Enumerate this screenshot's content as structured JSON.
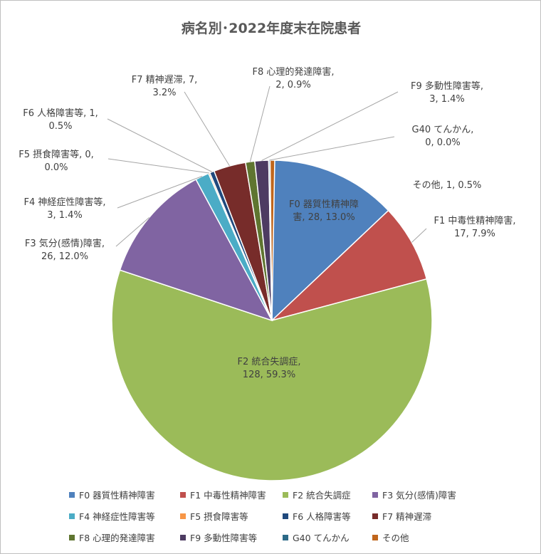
{
  "chart_data": {
    "type": "pie",
    "title": "病名別･2022年度末在院患者",
    "slices": [
      {
        "name": "F0 器質性精神障害",
        "value": 28,
        "percent": "13.0%",
        "color": "#4F81BD",
        "label_line1": "F0 器質性精神障",
        "label_line2": "害, 28, 13.0%"
      },
      {
        "name": "F1 中毒性精神障害",
        "value": 17,
        "percent": "7.9%",
        "color": "#C0504D",
        "label_line1": "F1 中毒性精神障害,",
        "label_line2": "17, 7.9%"
      },
      {
        "name": "F2 統合失調症",
        "value": 128,
        "percent": "59.3%",
        "color": "#9BBB59",
        "label_line1": "F2 統合失調症,",
        "label_line2": "128, 59.3%"
      },
      {
        "name": "F3 気分(感情)障害",
        "value": 26,
        "percent": "12.0%",
        "color": "#8064A2",
        "label_line1": "F3 気分(感情)障害,",
        "label_line2": "26, 12.0%"
      },
      {
        "name": "F4 神経症性障害等",
        "value": 3,
        "percent": "1.4%",
        "color": "#4BACC6",
        "label_line1": "F4 神経症性障害等,",
        "label_line2": "3, 1.4%"
      },
      {
        "name": "F5 摂食障害等",
        "value": 0,
        "percent": "0.0%",
        "color": "#F79646",
        "label_line1": "F5 摂食障害等, 0,",
        "label_line2": "0.0%"
      },
      {
        "name": "F6 人格障害等",
        "value": 1,
        "percent": "0.5%",
        "color": "#1F497D",
        "label_line1": "F6 人格障害等, 1,",
        "label_line2": "0.5%"
      },
      {
        "name": "F7 精神遅滞",
        "value": 7,
        "percent": "3.2%",
        "color": "#772C2A",
        "label_line1": "F7 精神遅滞, 7,",
        "label_line2": "3.2%"
      },
      {
        "name": "F8 心理的発達障害",
        "value": 2,
        "percent": "0.9%",
        "color": "#5F7530",
        "label_line1": "F8 心理的発達障害,",
        "label_line2": "2, 0.9%"
      },
      {
        "name": "F9 多動性障害等",
        "value": 3,
        "percent": "1.4%",
        "color": "#4D3B62",
        "label_line1": "F9 多動性障害等,",
        "label_line2": "3, 1.4%"
      },
      {
        "name": "G40 てんかん",
        "value": 0,
        "percent": "0.0%",
        "color": "#2C6A87",
        "label_line1": "G40 てんかん,",
        "label_line2": "0, 0.0%"
      },
      {
        "name": "その他",
        "value": 1,
        "percent": "0.5%",
        "color": "#C0661C",
        "label_line1": "その他, 1, 0.5%",
        "label_line2": ""
      }
    ],
    "legend_position": "bottom"
  }
}
